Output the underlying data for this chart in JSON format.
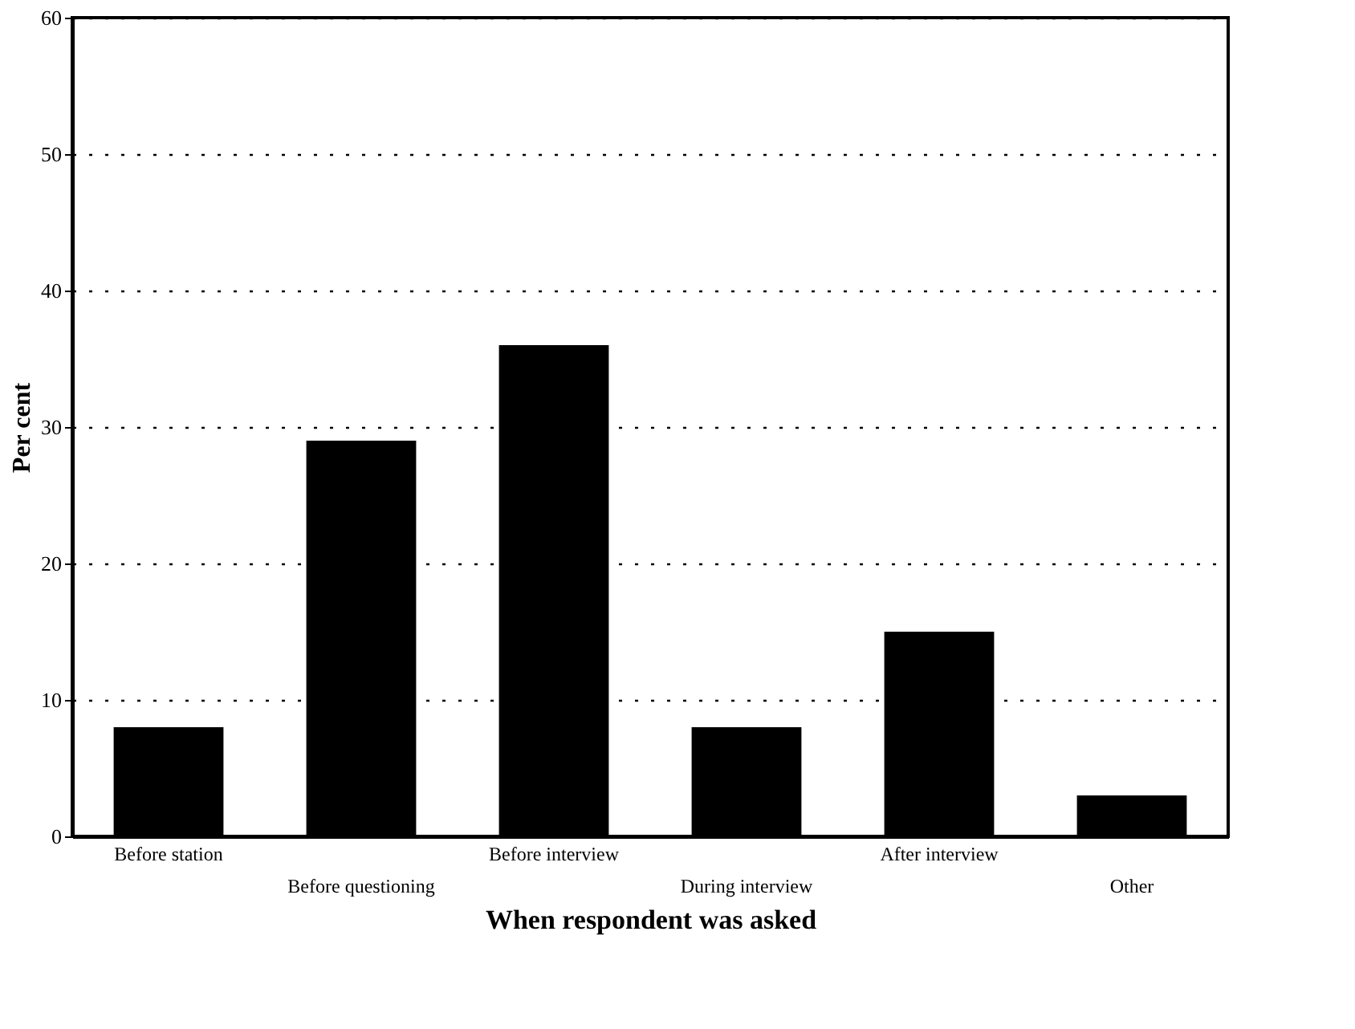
{
  "chart_data": {
    "type": "bar",
    "xlabel": "When respondent was asked",
    "ylabel": "Per cent",
    "categories": [
      "Before station",
      "Before questioning",
      "Before interview",
      "During interview",
      "After interview",
      "Other"
    ],
    "values": [
      8,
      29,
      36,
      8,
      15,
      3
    ],
    "color": "#000000",
    "ylim": [
      0,
      60
    ],
    "yticks": [
      0,
      10,
      20,
      30,
      40,
      50,
      60
    ],
    "grid": "y",
    "line_style": "dotted"
  }
}
